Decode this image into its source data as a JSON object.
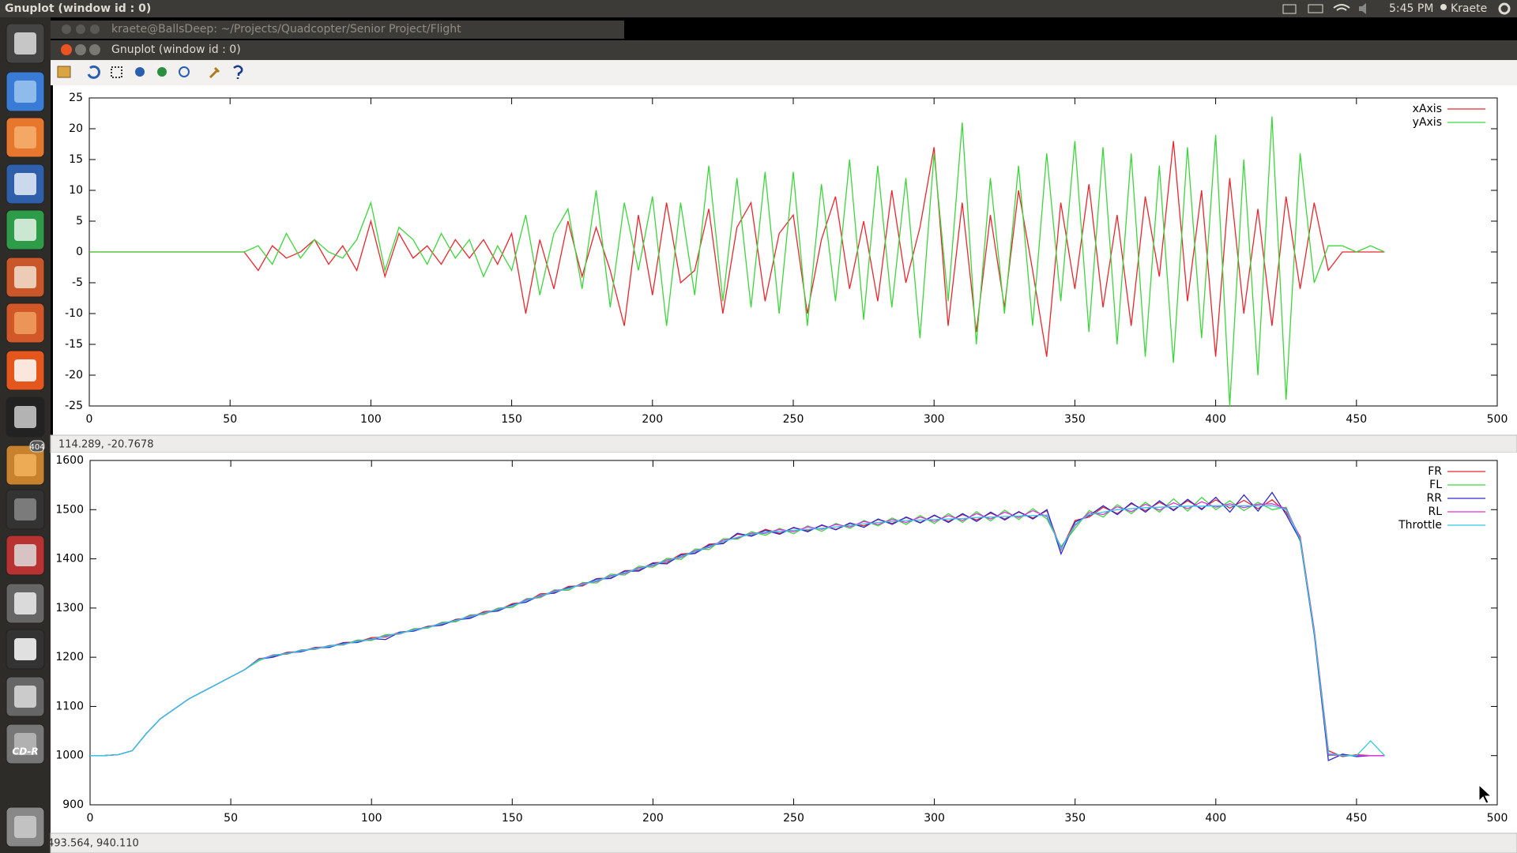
{
  "top_bar": {
    "title": "Gnuplot (window id : 0)",
    "time": "5:45 PM",
    "user": "Kraete"
  },
  "launcher": {
    "badge": "404",
    "cd_label": "CD-R"
  },
  "terminal_window": {
    "title": "kraete@BallsDeep: ~/Projects/Quadcopter/Senior Project/Flight"
  },
  "gnuplot_window": {
    "title": "Gnuplot (window id : 0)",
    "status_top": "114.289, -20.7678",
    "status_bottom": "493.564, 940.110"
  },
  "chart_data": [
    {
      "type": "line",
      "xlim": [
        0,
        500
      ],
      "ylim": [
        -25,
        25
      ],
      "xticks": [
        0,
        50,
        100,
        150,
        200,
        250,
        300,
        350,
        400,
        450,
        500
      ],
      "yticks": [
        -25,
        -20,
        -15,
        -10,
        -5,
        0,
        5,
        10,
        15,
        20,
        25
      ],
      "grid": false,
      "legend": "top-right",
      "x": [
        0,
        5,
        10,
        15,
        20,
        25,
        30,
        35,
        40,
        45,
        50,
        55,
        60,
        65,
        70,
        75,
        80,
        85,
        90,
        95,
        100,
        105,
        110,
        115,
        120,
        125,
        130,
        135,
        140,
        145,
        150,
        155,
        160,
        165,
        170,
        175,
        180,
        185,
        190,
        195,
        200,
        205,
        210,
        215,
        220,
        225,
        230,
        235,
        240,
        245,
        250,
        255,
        260,
        265,
        270,
        275,
        280,
        285,
        290,
        295,
        300,
        305,
        310,
        315,
        320,
        325,
        330,
        335,
        340,
        345,
        350,
        355,
        360,
        365,
        370,
        375,
        380,
        385,
        390,
        395,
        400,
        405,
        410,
        415,
        420,
        425,
        430,
        435,
        440,
        445,
        450,
        455,
        460
      ],
      "series": [
        {
          "name": "xAxis",
          "color": "#e8262d",
          "values": [
            0,
            0,
            0,
            0,
            0,
            0,
            0,
            0,
            0,
            0,
            0,
            0,
            -3,
            1,
            -1,
            0,
            2,
            -2,
            1,
            -3,
            5,
            -4,
            3,
            -1,
            1,
            -2,
            2,
            -1,
            2,
            -2,
            3,
            -10,
            2,
            -6,
            5,
            -4,
            4,
            -3,
            -12,
            6,
            -7,
            8,
            -5,
            -3,
            7,
            -10,
            4,
            8,
            -8,
            3,
            6,
            -10,
            2,
            9,
            -6,
            5,
            -8,
            10,
            -5,
            4,
            17,
            -12,
            8,
            -13,
            6,
            -9,
            10,
            -3,
            -17,
            8,
            -6,
            11,
            -9,
            6,
            -12,
            9,
            -4,
            18,
            -8,
            10,
            -17,
            12,
            -10,
            7,
            -12,
            9,
            -6,
            8,
            -3,
            0,
            0,
            0,
            0
          ]
        },
        {
          "name": "yAxis",
          "color": "#3cd63c",
          "values": [
            0,
            0,
            0,
            0,
            0,
            0,
            0,
            0,
            0,
            0,
            0,
            0,
            1,
            -2,
            3,
            -1,
            2,
            0,
            -1,
            2,
            8,
            -3,
            4,
            2,
            -2,
            3,
            -1,
            2,
            -4,
            1,
            -3,
            6,
            -7,
            3,
            7,
            -6,
            10,
            -9,
            8,
            -3,
            9,
            -12,
            8,
            -7,
            14,
            -8,
            12,
            -9,
            13,
            -10,
            13,
            -12,
            11,
            -8,
            15,
            -11,
            14,
            -9,
            12,
            -14,
            16,
            -8,
            21,
            -15,
            12,
            -10,
            14,
            -12,
            16,
            -8,
            18,
            -13,
            17,
            -15,
            16,
            -17,
            14,
            -18,
            17,
            -14,
            19,
            -25,
            15,
            -20,
            22,
            -24,
            16,
            -5,
            1,
            1,
            0,
            1,
            0
          ]
        }
      ]
    },
    {
      "type": "line",
      "xlim": [
        0,
        500
      ],
      "ylim": [
        900,
        1600
      ],
      "xticks": [
        0,
        50,
        100,
        150,
        200,
        250,
        300,
        350,
        400,
        450,
        500
      ],
      "yticks": [
        900,
        1000,
        1100,
        1200,
        1300,
        1400,
        1500,
        1600
      ],
      "grid": false,
      "legend": "top-right",
      "x": [
        0,
        5,
        10,
        15,
        20,
        25,
        30,
        35,
        40,
        45,
        50,
        55,
        60,
        65,
        70,
        75,
        80,
        85,
        90,
        95,
        100,
        105,
        110,
        115,
        120,
        125,
        130,
        135,
        140,
        145,
        150,
        155,
        160,
        165,
        170,
        175,
        180,
        185,
        190,
        195,
        200,
        205,
        210,
        215,
        220,
        225,
        230,
        235,
        240,
        245,
        250,
        255,
        260,
        265,
        270,
        275,
        280,
        285,
        290,
        295,
        300,
        305,
        310,
        315,
        320,
        325,
        330,
        335,
        340,
        345,
        350,
        355,
        360,
        365,
        370,
        375,
        380,
        385,
        390,
        395,
        400,
        405,
        410,
        415,
        420,
        425,
        430,
        435,
        440,
        445,
        450,
        455,
        460
      ],
      "series": [
        {
          "name": "FR",
          "color": "#e8262d",
          "values": [
            1000,
            1000,
            1002,
            1010,
            1045,
            1075,
            1095,
            1115,
            1130,
            1145,
            1160,
            1175,
            1197,
            1201,
            1210,
            1212,
            1220,
            1221,
            1230,
            1231,
            1240,
            1241,
            1251,
            1254,
            1263,
            1266,
            1277,
            1280,
            1293,
            1295,
            1309,
            1312,
            1329,
            1330,
            1344,
            1345,
            1360,
            1361,
            1376,
            1377,
            1392,
            1393,
            1410,
            1412,
            1430,
            1432,
            1450,
            1447,
            1460,
            1452,
            1463,
            1457,
            1468,
            1460,
            1472,
            1467,
            1480,
            1472,
            1484,
            1474,
            1488,
            1476,
            1490,
            1479,
            1493,
            1481,
            1495,
            1483,
            1498,
            1418,
            1478,
            1485,
            1505,
            1492,
            1512,
            1498,
            1515,
            1500,
            1518,
            1502,
            1520,
            1503,
            1519,
            1502,
            1520,
            1495,
            1445,
            1255,
            1010,
            998,
            1002,
            1000,
            1000
          ]
        },
        {
          "name": "FL",
          "color": "#3cd63c",
          "values": [
            1000,
            1000,
            1002,
            1010,
            1045,
            1075,
            1095,
            1115,
            1130,
            1145,
            1160,
            1175,
            1193,
            1205,
            1206,
            1215,
            1216,
            1224,
            1225,
            1235,
            1234,
            1246,
            1247,
            1258,
            1259,
            1271,
            1272,
            1286,
            1287,
            1300,
            1301,
            1319,
            1321,
            1337,
            1336,
            1352,
            1351,
            1369,
            1367,
            1385,
            1383,
            1401,
            1399,
            1420,
            1419,
            1441,
            1440,
            1455,
            1448,
            1462,
            1451,
            1467,
            1456,
            1472,
            1462,
            1478,
            1467,
            1483,
            1470,
            1488,
            1472,
            1492,
            1474,
            1496,
            1477,
            1499,
            1480,
            1502,
            1481,
            1425,
            1462,
            1498,
            1485,
            1510,
            1492,
            1515,
            1495,
            1522,
            1497,
            1525,
            1500,
            1518,
            1498,
            1515,
            1500,
            1505,
            1435,
            1248,
            1000,
            1002,
            1000,
            1000,
            1000
          ]
        },
        {
          "name": "RR",
          "color": "#2a2ad0",
          "values": [
            1000,
            1000,
            1002,
            1010,
            1045,
            1075,
            1095,
            1115,
            1130,
            1145,
            1160,
            1175,
            1196,
            1200,
            1209,
            1211,
            1219,
            1220,
            1229,
            1230,
            1238,
            1236,
            1251,
            1253,
            1262,
            1265,
            1276,
            1279,
            1291,
            1294,
            1307,
            1312,
            1326,
            1331,
            1342,
            1347,
            1359,
            1360,
            1375,
            1375,
            1391,
            1390,
            1408,
            1411,
            1428,
            1431,
            1452,
            1446,
            1458,
            1450,
            1464,
            1455,
            1469,
            1459,
            1473,
            1464,
            1481,
            1470,
            1485,
            1473,
            1489,
            1474,
            1492,
            1476,
            1495,
            1479,
            1496,
            1481,
            1500,
            1410,
            1475,
            1488,
            1508,
            1490,
            1514,
            1495,
            1518,
            1498,
            1521,
            1500,
            1525,
            1495,
            1530,
            1497,
            1535,
            1490,
            1438,
            1245,
            990,
            1003,
            998,
            1000,
            1000
          ]
        },
        {
          "name": "RL",
          "color": "#e030e0",
          "values": [
            1000,
            1000,
            1002,
            1010,
            1045,
            1075,
            1095,
            1115,
            1130,
            1145,
            1160,
            1175,
            1195,
            1204,
            1207,
            1214,
            1217,
            1223,
            1226,
            1233,
            1236,
            1244,
            1248,
            1256,
            1261,
            1269,
            1274,
            1284,
            1289,
            1298,
            1304,
            1317,
            1323,
            1335,
            1339,
            1350,
            1354,
            1366,
            1370,
            1382,
            1386,
            1398,
            1403,
            1417,
            1423,
            1438,
            1442,
            1452,
            1452,
            1460,
            1455,
            1465,
            1460,
            1470,
            1465,
            1476,
            1470,
            1480,
            1474,
            1485,
            1476,
            1488,
            1478,
            1492,
            1481,
            1495,
            1484,
            1498,
            1486,
            1422,
            1468,
            1494,
            1490,
            1506,
            1496,
            1511,
            1499,
            1514,
            1502,
            1516,
            1505,
            1512,
            1504,
            1511,
            1512,
            1502,
            1442,
            1252,
            1002,
            1000,
            1000,
            1000,
            1000
          ]
        },
        {
          "name": "Throttle",
          "color": "#2ec8e8",
          "values": [
            1000,
            1000,
            1002,
            1010,
            1045,
            1075,
            1095,
            1115,
            1130,
            1145,
            1160,
            1175,
            1195,
            1203,
            1208,
            1213,
            1218,
            1222,
            1227,
            1232,
            1237,
            1243,
            1249,
            1255,
            1261,
            1268,
            1275,
            1282,
            1290,
            1297,
            1305,
            1315,
            1325,
            1333,
            1340,
            1348,
            1356,
            1364,
            1372,
            1380,
            1388,
            1396,
            1405,
            1415,
            1425,
            1435,
            1444,
            1450,
            1454,
            1456,
            1458,
            1460,
            1462,
            1465,
            1468,
            1471,
            1474,
            1476,
            1478,
            1479,
            1480,
            1481,
            1482,
            1484,
            1485,
            1486,
            1487,
            1488,
            1489,
            1420,
            1470,
            1490,
            1495,
            1500,
            1502,
            1504,
            1505,
            1506,
            1507,
            1507,
            1508,
            1508,
            1508,
            1508,
            1508,
            1500,
            1440,
            1250,
            1005,
            1000,
            1000,
            1030,
            1000
          ]
        }
      ]
    }
  ]
}
